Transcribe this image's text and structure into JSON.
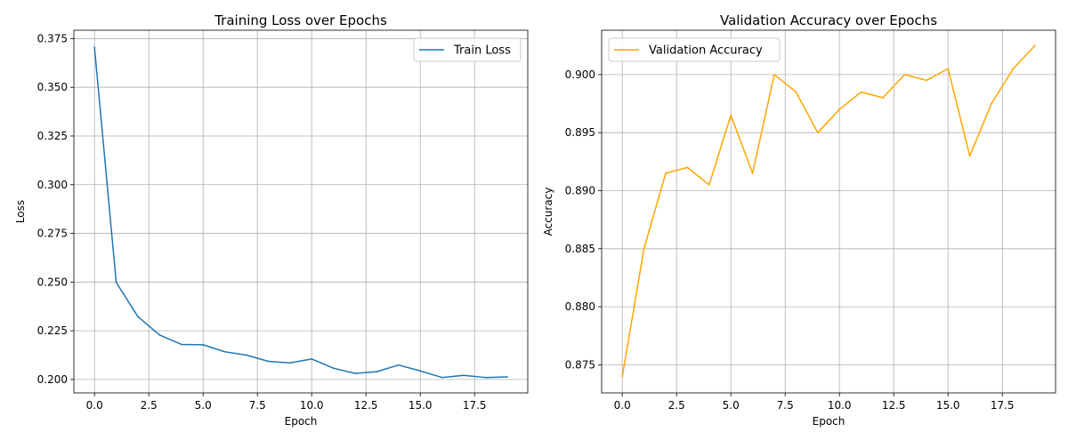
{
  "chart_data": [
    {
      "type": "line",
      "title": "Training Loss over Epochs",
      "xlabel": "Epoch",
      "ylabel": "Loss",
      "xlim": [
        -0.95,
        19.95
      ],
      "ylim": [
        0.1931,
        0.3793
      ],
      "xticks": [
        0.0,
        2.5,
        5.0,
        7.5,
        10.0,
        12.5,
        15.0,
        17.5
      ],
      "xtick_labels": [
        "0.0",
        "2.5",
        "5.0",
        "7.5",
        "10.0",
        "12.5",
        "15.0",
        "17.5"
      ],
      "yticks": [
        0.2,
        0.225,
        0.25,
        0.275,
        0.3,
        0.325,
        0.35,
        0.375
      ],
      "ytick_labels": [
        "0.200",
        "0.225",
        "0.250",
        "0.275",
        "0.300",
        "0.325",
        "0.350",
        "0.375"
      ],
      "grid": true,
      "legend_position": "top-right",
      "series": [
        {
          "name": "Train Loss",
          "color": "#1f77b4",
          "x": [
            0,
            1,
            2,
            3,
            4,
            5,
            6,
            7,
            8,
            9,
            10,
            11,
            12,
            13,
            14,
            15,
            16,
            17,
            18,
            19
          ],
          "y": [
            0.3705,
            0.2498,
            0.2322,
            0.2228,
            0.218,
            0.2178,
            0.2142,
            0.2125,
            0.2093,
            0.2085,
            0.2105,
            0.2058,
            0.2031,
            0.204,
            0.2074,
            0.2044,
            0.201,
            0.2021,
            0.201,
            0.2013
          ]
        }
      ]
    },
    {
      "type": "line",
      "title": "Validation Accuracy over Epochs",
      "xlabel": "Epoch",
      "ylabel": "Accuracy",
      "xlim": [
        -0.95,
        19.95
      ],
      "ylim": [
        0.87258,
        0.90382
      ],
      "xticks": [
        0.0,
        2.5,
        5.0,
        7.5,
        10.0,
        12.5,
        15.0,
        17.5
      ],
      "xtick_labels": [
        "0.0",
        "2.5",
        "5.0",
        "7.5",
        "10.0",
        "12.5",
        "15.0",
        "17.5"
      ],
      "yticks": [
        0.875,
        0.88,
        0.885,
        0.89,
        0.895,
        0.9
      ],
      "ytick_labels": [
        "0.875",
        "0.880",
        "0.885",
        "0.890",
        "0.895",
        "0.900"
      ],
      "grid": true,
      "legend_position": "top-left",
      "series": [
        {
          "name": "Validation Accuracy",
          "color": "#ffa500",
          "x": [
            0,
            1,
            2,
            3,
            4,
            5,
            6,
            7,
            8,
            9,
            10,
            11,
            12,
            13,
            14,
            15,
            16,
            17,
            18,
            19
          ],
          "y": [
            0.874,
            0.885,
            0.8915,
            0.892,
            0.8905,
            0.8965,
            0.8915,
            0.9,
            0.8985,
            0.895,
            0.897,
            0.8985,
            0.898,
            0.9,
            0.8995,
            0.9005,
            0.893,
            0.8975,
            0.9005,
            0.9025
          ]
        }
      ]
    }
  ]
}
